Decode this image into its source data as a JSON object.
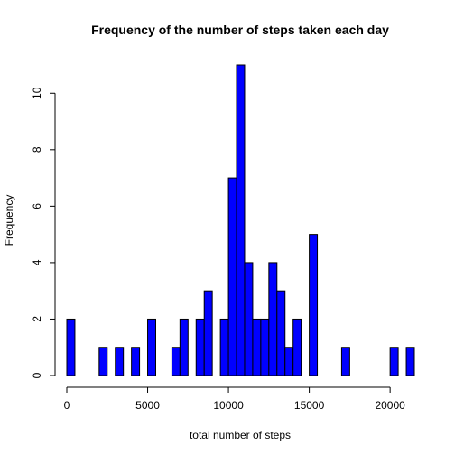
{
  "chart_data": {
    "type": "bar",
    "title": "Frequency of the number of steps taken each day",
    "xlabel": "total number of steps",
    "ylabel": "Frequency",
    "bin_width": 500,
    "bins_start": [
      0,
      500,
      1000,
      1500,
      2000,
      2500,
      3000,
      3500,
      4000,
      4500,
      5000,
      5500,
      6000,
      6500,
      7000,
      7500,
      8000,
      8500,
      9000,
      9500,
      10000,
      10500,
      11000,
      11500,
      12000,
      12500,
      13000,
      13500,
      14000,
      14500,
      15000,
      15500,
      16000,
      16500,
      17000,
      17500,
      18000,
      18500,
      19000,
      19500,
      20000,
      20500,
      21000
    ],
    "values": [
      2,
      0,
      0,
      0,
      1,
      0,
      1,
      0,
      1,
      0,
      2,
      0,
      0,
      1,
      2,
      0,
      2,
      3,
      0,
      2,
      7,
      11,
      4,
      2,
      2,
      4,
      3,
      1,
      2,
      0,
      5,
      0,
      0,
      0,
      1,
      0,
      0,
      0,
      0,
      0,
      1,
      0,
      1
    ],
    "xlim": [
      0,
      21500
    ],
    "ylim": [
      0,
      11
    ],
    "xticks": [
      0,
      5000,
      10000,
      15000,
      20000
    ],
    "xtick_labels": [
      "0",
      "5000",
      "10000",
      "15000",
      "20000"
    ],
    "yticks": [
      0,
      2,
      4,
      6,
      8,
      10
    ],
    "ytick_labels": [
      "0",
      "2",
      "4",
      "6",
      "8",
      "10"
    ],
    "bar_color": "#0000ff",
    "grid": false,
    "legend": "none"
  }
}
